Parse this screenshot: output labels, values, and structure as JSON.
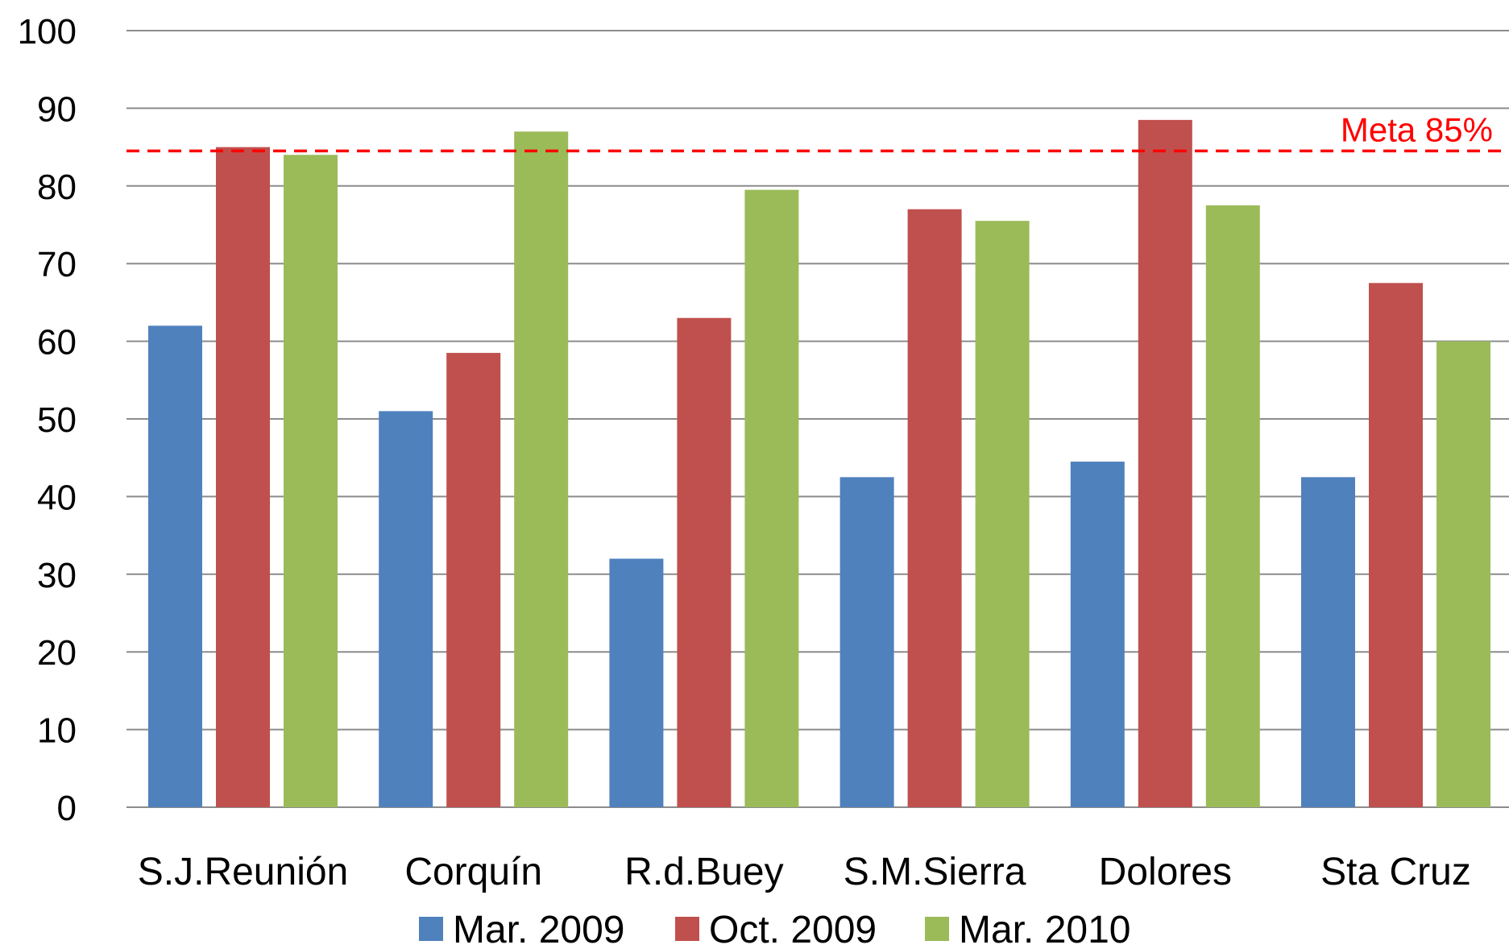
{
  "chart_data": {
    "type": "bar",
    "title": "",
    "xlabel": "",
    "ylabel": "",
    "ylim": [
      0,
      100
    ],
    "yticks": [
      0,
      10,
      20,
      30,
      40,
      50,
      60,
      70,
      80,
      90,
      100
    ],
    "grid": true,
    "legend_position": "bottom",
    "categories": [
      "S.J.Reunión",
      "Corquín",
      "R.d.Buey",
      "S.M.Sierra",
      "Dolores",
      "Sta Cruz"
    ],
    "series": [
      {
        "name": "Mar. 2009",
        "color": "#4F81BD",
        "values": [
          62,
          51,
          32,
          42.5,
          44.5,
          42.5
        ]
      },
      {
        "name": "Oct. 2009",
        "color": "#C0504D",
        "values": [
          85,
          58.5,
          63,
          77,
          88.5,
          67.5
        ]
      },
      {
        "name": "Mar. 2010",
        "color": "#9BBB59",
        "values": [
          84,
          87,
          79.5,
          75.5,
          77.5,
          60
        ]
      }
    ],
    "reference_line": {
      "value": 84.5,
      "label": "Meta 85%",
      "color": "#FF0000"
    }
  }
}
